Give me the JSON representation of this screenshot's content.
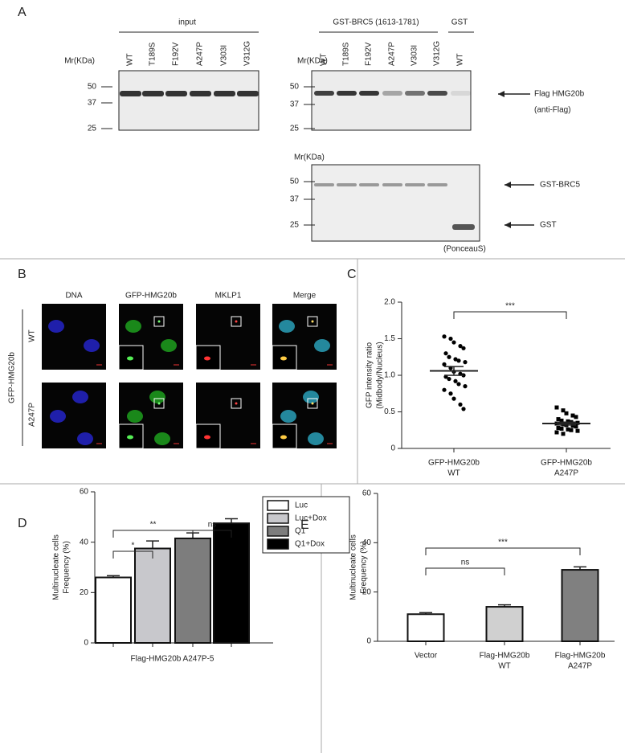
{
  "panel_a": {
    "label": "A",
    "input_header": "input",
    "gst_brc5_header": "GST-BRC5 (1613-1781)",
    "gst_header": "GST",
    "lanes": [
      "WT",
      "T189S",
      "F192V",
      "A247P",
      "V303I",
      "V312G"
    ],
    "gst_lanes": [
      "WT"
    ],
    "mr_label": "Mr(KDa)",
    "markers": [
      50,
      37,
      25
    ],
    "flag_label": "Flag HMG20b",
    "flag_sub": "(anti-Flag)",
    "gst_brc5_label": "GST-BRC5",
    "gst_label": "GST",
    "stain_label": "(PonceauS)"
  },
  "panel_b": {
    "label": "B",
    "columns": [
      "DNA",
      "GFP-HMG20b",
      "MKLP1",
      "Merge"
    ],
    "row_group": "GFP-HMG20b",
    "rows": [
      "WT",
      "A247P"
    ]
  },
  "chart_data": [
    {
      "type": "scatter",
      "label": "C",
      "ylabel": [
        "GFP intensity ratio",
        "(Midbody/Nucleus)"
      ],
      "categories": [
        [
          "GFP-HMG20b",
          "WT"
        ],
        [
          "GFP-HMG20b",
          "A247P"
        ]
      ],
      "groups": [
        {
          "marker": "circle",
          "color": "#000000",
          "values": [
            1.53,
            1.5,
            1.45,
            1.4,
            1.37,
            1.3,
            1.25,
            1.22,
            1.2,
            1.18,
            1.15,
            1.1,
            1.05,
            1.02,
            1.0,
            0.98,
            0.95,
            0.92,
            0.88,
            0.85,
            0.8,
            0.75,
            0.68,
            0.6,
            0.54
          ]
        },
        {
          "marker": "square",
          "color": "#000000",
          "values": [
            0.56,
            0.52,
            0.48,
            0.45,
            0.43,
            0.4,
            0.38,
            0.37,
            0.36,
            0.35,
            0.34,
            0.33,
            0.32,
            0.31,
            0.3,
            0.28,
            0.27,
            0.26,
            0.25,
            0.24,
            0.22,
            0.2
          ]
        }
      ],
      "means": [
        1.06,
        0.34
      ],
      "sem": [
        0.06,
        0.02
      ],
      "ylim": [
        0,
        2
      ],
      "yticks": [
        0,
        0.5,
        {
          "value": 1,
          "label": "1.0"
        },
        1.5,
        {
          "value": 2,
          "label": "2.0"
        }
      ],
      "annotations": [
        "***"
      ]
    },
    {
      "type": "bar",
      "label": "D",
      "ylabel": [
        "Multinucleate cells",
        "Frequency (%)"
      ],
      "xlabel": "Flag-HMG20b A247P-5",
      "series": [
        {
          "name": "Luc",
          "color": "#ffffff",
          "values": [
            26
          ],
          "errors": [
            0.7
          ]
        },
        {
          "name": "Luc+Dox",
          "color": "#c8c8cc",
          "values": [
            37.5
          ],
          "errors": [
            3
          ]
        },
        {
          "name": "Q1",
          "color": "#7d7d7d",
          "values": [
            41.5
          ],
          "errors": [
            2.2
          ]
        },
        {
          "name": "Q1+Dox",
          "color": "#000000",
          "values": [
            47.5
          ],
          "errors": [
            1.8
          ]
        }
      ],
      "ylim": [
        0,
        60
      ],
      "yticks": [
        0,
        20,
        40,
        60
      ],
      "annotations": [
        "*",
        "**",
        "ns"
      ]
    },
    {
      "type": "bar",
      "label": "E",
      "ylabel": [
        "Multinucleate cells",
        "Frequency (%)"
      ],
      "categories": [
        [
          "Vector"
        ],
        [
          "Flag-HMG20b",
          "WT"
        ],
        [
          "Flag-HMG20b",
          "A247P"
        ]
      ],
      "values": [
        11,
        14,
        29
      ],
      "errors": [
        0.6,
        0.8,
        1.2
      ],
      "colors": [
        "#ffffff",
        "#d0d0d0",
        "#808080"
      ],
      "ylim": [
        0,
        60
      ],
      "yticks": [
        0,
        20,
        40,
        60
      ],
      "annotations": [
        "ns",
        "***"
      ]
    }
  ]
}
